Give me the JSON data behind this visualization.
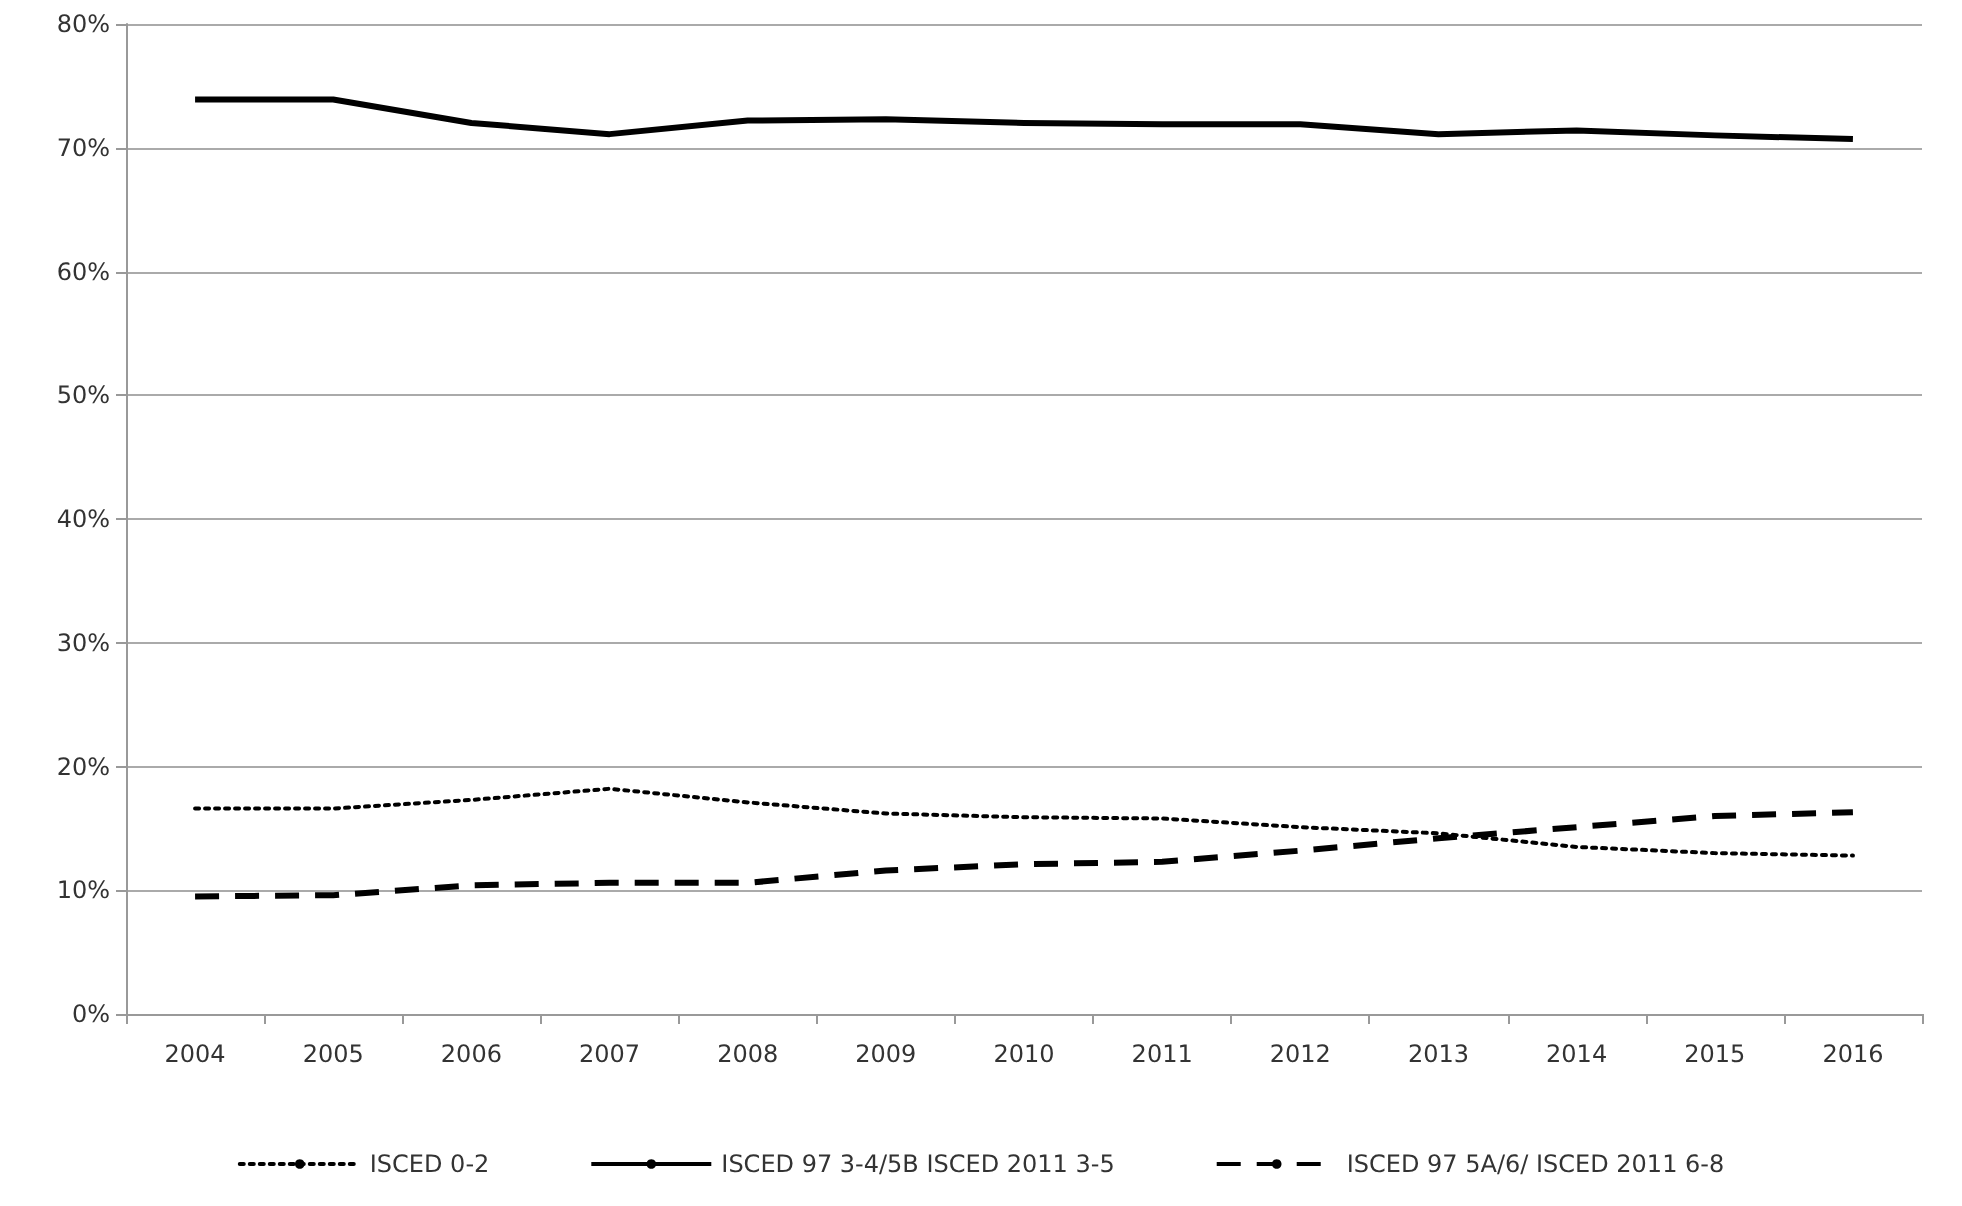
{
  "chart_data": {
    "type": "line",
    "categories": [
      "2004",
      "2005",
      "2006",
      "2007",
      "2008",
      "2009",
      "2010",
      "2011",
      "2012",
      "2013",
      "2014",
      "2015",
      "2016"
    ],
    "series": [
      {
        "name": "ISCED 0-2",
        "color": "#000000",
        "line_style": "dotted",
        "values": [
          16.6,
          16.6,
          17.3,
          18.2,
          17.1,
          16.2,
          15.9,
          15.8,
          15.1,
          14.6,
          13.5,
          13.0,
          12.8
        ]
      },
      {
        "name": "ISCED 97 3-4/5B ISCED 2011 3-5",
        "color": "#000000",
        "line_style": "solid",
        "values": [
          73.9,
          73.9,
          72.0,
          71.1,
          72.2,
          72.3,
          72.0,
          71.9,
          71.9,
          71.1,
          71.4,
          71.0,
          70.7
        ]
      },
      {
        "name": "ISCED 97 5A/6/ ISCED 2011 6-8",
        "color": "#000000",
        "line_style": "dashed",
        "values": [
          9.5,
          9.6,
          10.4,
          10.6,
          10.6,
          11.6,
          12.1,
          12.3,
          13.2,
          14.2,
          15.1,
          16.0,
          16.3
        ]
      }
    ],
    "ylim": [
      0,
      80
    ],
    "yticks": [
      {
        "value": 0,
        "label": "0%"
      },
      {
        "value": 10,
        "label": "10%"
      },
      {
        "value": 20,
        "label": "20%"
      },
      {
        "value": 30,
        "label": "30%"
      },
      {
        "value": 40,
        "label": "40%"
      },
      {
        "value": 50,
        "label": "50%"
      },
      {
        "value": 60,
        "label": "60%"
      },
      {
        "value": 70,
        "label": "70%"
      },
      {
        "value": 80,
        "label": "80%"
      }
    ],
    "grid": "y",
    "legend": "bottom",
    "marker": "none"
  }
}
